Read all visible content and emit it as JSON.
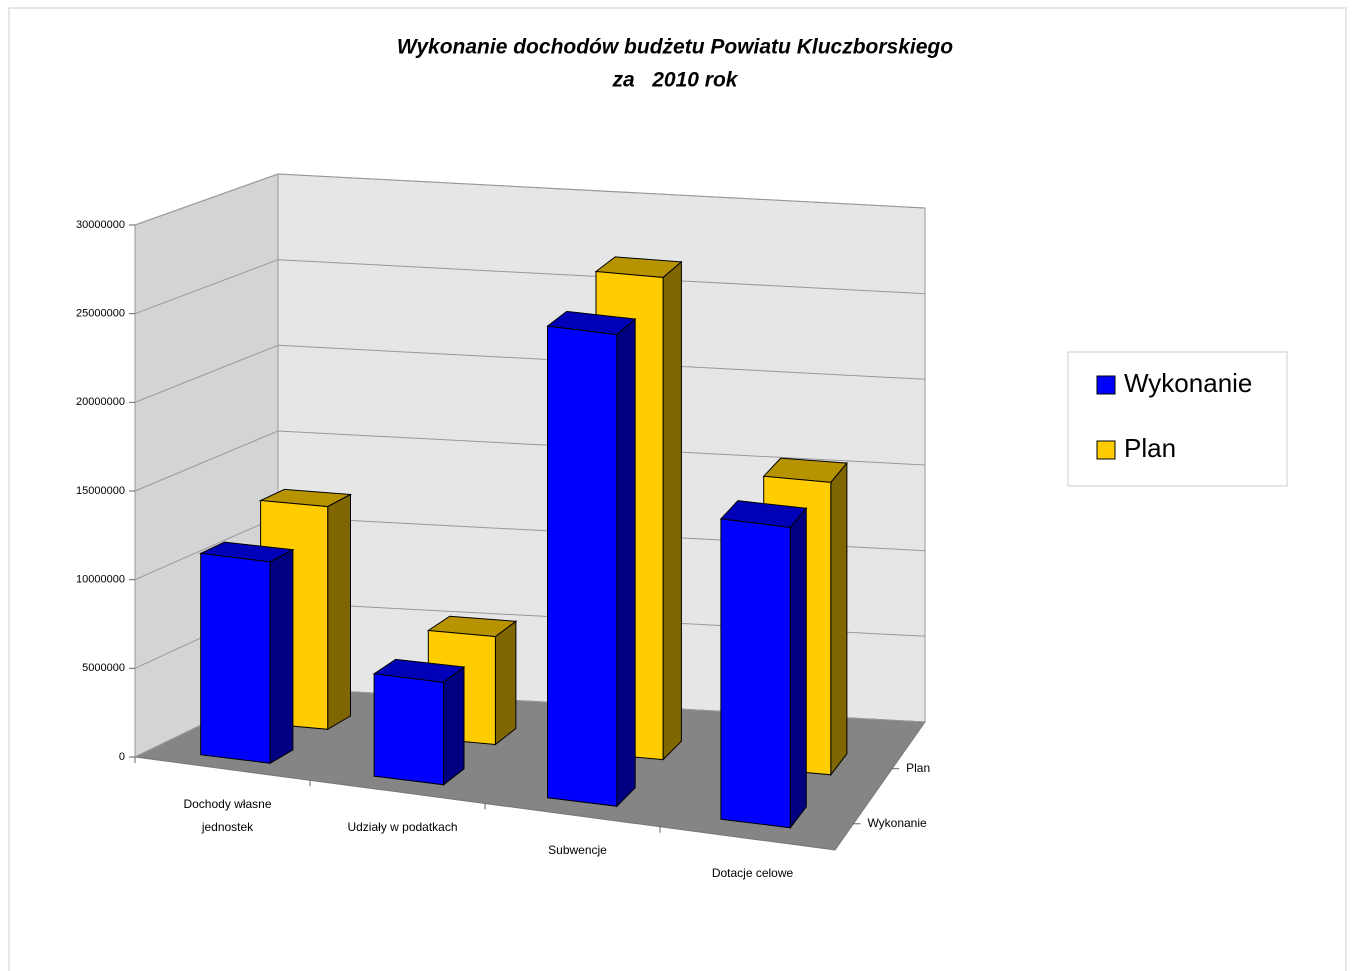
{
  "chart_data": {
    "type": "bar3d",
    "title": [
      "Wykonanie dochodów budżetu Powiatu Kluczborskiego",
      "za   2010 rok"
    ],
    "categories": [
      "Dochody własne jednostek",
      "Udziały w podatkach",
      "Subwencje",
      "Dotacje celowe"
    ],
    "series": [
      {
        "name": "Wykonanie",
        "color": "#0000ff",
        "values": [
          11400000,
          5800000,
          26700000,
          17000000
        ]
      },
      {
        "name": "Plan",
        "color": "#ffcc00",
        "values": [
          12800000,
          6200000,
          27700000,
          16800000
        ]
      }
    ],
    "ylim": [
      0,
      30000000
    ],
    "yticks": [
      0,
      5000000,
      10000000,
      15000000,
      20000000,
      25000000,
      30000000
    ],
    "grid": true,
    "legend": "right"
  }
}
